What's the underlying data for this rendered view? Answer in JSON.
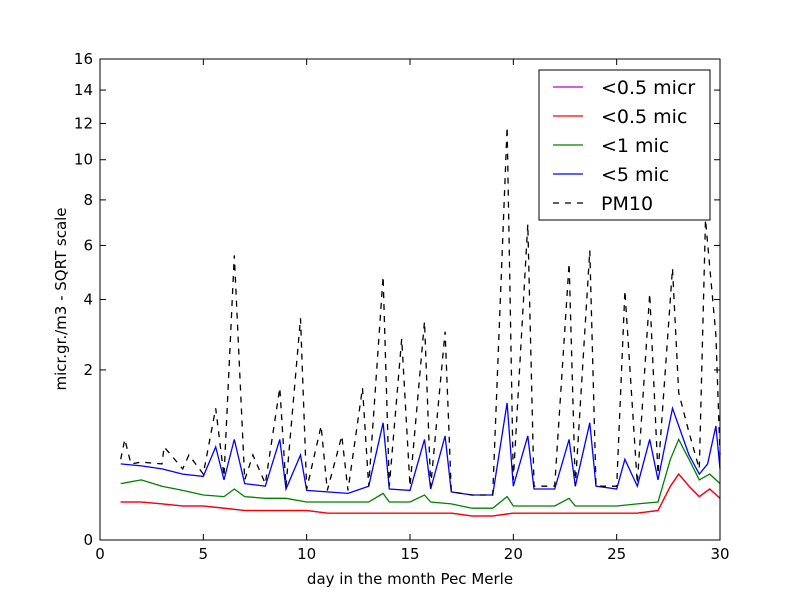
{
  "chart_data": {
    "type": "line",
    "xlabel": "day in the month Pec Merle",
    "ylabel": "micr.gr./m3 - SQRT scale",
    "y_scale": "sqrt",
    "xlim": [
      0,
      30
    ],
    "ylim": [
      0,
      16
    ],
    "x_ticks": [
      0,
      5,
      10,
      15,
      20,
      25,
      30
    ],
    "y_ticks": [
      0,
      2,
      4,
      6,
      8,
      10,
      12,
      14,
      16
    ],
    "grid": false,
    "legend_position": "top-right",
    "series": [
      {
        "name": "<0.5 micr",
        "color": "#bf00bf",
        "style": "solid",
        "x": [
          1,
          2,
          3,
          4,
          5,
          6,
          7,
          8,
          9,
          10,
          11,
          12,
          13,
          14,
          15,
          16,
          17,
          18,
          19,
          20,
          21,
          22,
          23,
          24,
          25,
          26,
          27,
          27.6,
          28,
          28.5,
          29,
          29.5,
          30
        ],
        "y": [
          0.1,
          0.1,
          0.09,
          0.08,
          0.08,
          0.07,
          0.06,
          0.06,
          0.06,
          0.06,
          0.05,
          0.05,
          0.05,
          0.05,
          0.05,
          0.05,
          0.05,
          0.04,
          0.04,
          0.05,
          0.05,
          0.05,
          0.05,
          0.05,
          0.05,
          0.05,
          0.06,
          0.2,
          0.3,
          0.2,
          0.13,
          0.18,
          0.12
        ]
      },
      {
        "name": "<0.5 mic",
        "color": "#ff0000",
        "style": "solid",
        "x": [
          1,
          2,
          3,
          4,
          5,
          6,
          7,
          8,
          9,
          10,
          11,
          12,
          13,
          14,
          15,
          16,
          17,
          18,
          19,
          20,
          21,
          22,
          23,
          24,
          25,
          26,
          27,
          27.6,
          28,
          28.5,
          29,
          29.5,
          30
        ],
        "y": [
          0.1,
          0.1,
          0.09,
          0.08,
          0.08,
          0.07,
          0.06,
          0.06,
          0.06,
          0.06,
          0.05,
          0.05,
          0.05,
          0.05,
          0.05,
          0.05,
          0.05,
          0.04,
          0.04,
          0.05,
          0.05,
          0.05,
          0.05,
          0.05,
          0.05,
          0.05,
          0.06,
          0.2,
          0.3,
          0.2,
          0.13,
          0.18,
          0.12
        ]
      },
      {
        "name": "<1 mic",
        "color": "#008000",
        "style": "solid",
        "x": [
          1,
          2,
          3,
          4,
          5,
          6,
          6.5,
          7,
          8,
          9,
          10,
          11,
          12,
          13,
          13.7,
          14,
          15,
          15.7,
          16,
          17,
          18,
          19,
          19.7,
          20,
          21,
          22,
          22.7,
          23,
          24,
          25,
          26,
          27,
          27.6,
          28,
          28.5,
          29,
          29.5,
          30
        ],
        "y": [
          0.22,
          0.25,
          0.2,
          0.17,
          0.14,
          0.13,
          0.18,
          0.13,
          0.12,
          0.12,
          0.1,
          0.1,
          0.1,
          0.1,
          0.15,
          0.1,
          0.1,
          0.14,
          0.1,
          0.09,
          0.07,
          0.07,
          0.13,
          0.08,
          0.08,
          0.08,
          0.12,
          0.08,
          0.08,
          0.08,
          0.09,
          0.1,
          0.45,
          0.7,
          0.45,
          0.25,
          0.3,
          0.22
        ]
      },
      {
        "name": "<5 mic",
        "color": "#0000ff",
        "style": "solid",
        "x": [
          1,
          2,
          3,
          4,
          5,
          5.6,
          6,
          6.5,
          7,
          8,
          8.7,
          9,
          9.7,
          10,
          11,
          12,
          13,
          13.7,
          14,
          15,
          15.7,
          16,
          16.7,
          17,
          18,
          19,
          19.7,
          20,
          20.7,
          21,
          22,
          22.7,
          23,
          23.7,
          24,
          25,
          25.4,
          26,
          26.6,
          27,
          27.7,
          28,
          28.5,
          29,
          29.4,
          29.8,
          30
        ],
        "y": [
          0.4,
          0.38,
          0.35,
          0.3,
          0.28,
          0.6,
          0.25,
          0.7,
          0.22,
          0.2,
          0.7,
          0.18,
          0.5,
          0.17,
          0.16,
          0.15,
          0.2,
          0.95,
          0.18,
          0.17,
          0.7,
          0.18,
          0.75,
          0.16,
          0.14,
          0.14,
          1.3,
          0.2,
          0.75,
          0.18,
          0.18,
          0.7,
          0.2,
          0.95,
          0.2,
          0.18,
          0.45,
          0.2,
          0.7,
          0.25,
          1.2,
          0.9,
          0.5,
          0.3,
          0.4,
          0.9,
          0.35
        ]
      },
      {
        "name": "PM10",
        "color": "#000000",
        "style": "dashed",
        "x": [
          1,
          1.2,
          1.5,
          2,
          3,
          3.1,
          4,
          4.3,
          5,
          5.6,
          6,
          6.5,
          7,
          7.4,
          8,
          8.7,
          9,
          9.7,
          10,
          10.7,
          11,
          11.7,
          12,
          12.7,
          13,
          13.7,
          14,
          14.6,
          15,
          15.7,
          16,
          16.7,
          17,
          18,
          19,
          19.7,
          20,
          20.7,
          21,
          22,
          22.7,
          23,
          23.7,
          24,
          25,
          25.4,
          26,
          26.6,
          27,
          27.7,
          28,
          28.5,
          29,
          29.3,
          29.8,
          30
        ],
        "y": [
          0.45,
          0.7,
          0.4,
          0.42,
          0.4,
          0.6,
          0.35,
          0.5,
          0.3,
          1.2,
          0.28,
          5.6,
          0.25,
          0.5,
          0.22,
          1.6,
          0.2,
          3.4,
          0.18,
          0.9,
          0.17,
          0.75,
          0.17,
          1.6,
          0.2,
          4.8,
          0.2,
          2.8,
          0.2,
          3.3,
          0.2,
          3.0,
          0.16,
          0.14,
          0.14,
          11.8,
          0.25,
          6.9,
          0.2,
          0.2,
          5.3,
          0.2,
          5.8,
          0.2,
          0.2,
          4.3,
          0.22,
          4.2,
          0.3,
          5.1,
          1.5,
          0.8,
          0.35,
          7.1,
          2.9,
          0.5
        ]
      }
    ]
  }
}
